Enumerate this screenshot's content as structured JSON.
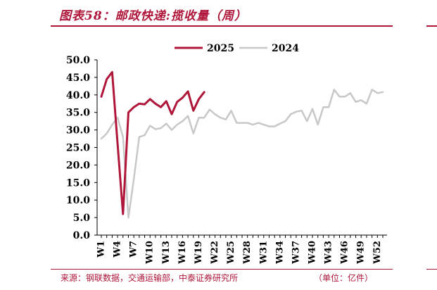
{
  "header": {
    "figure_label": "图表58：",
    "title": "邮政快递:揽收量（周）"
  },
  "footer": {
    "source": "来源：钢联数据，交通运输部，中泰证券研究所",
    "unit": "（单位：亿件）"
  },
  "chart_data": {
    "type": "line",
    "title": "",
    "xlabel": "",
    "ylabel": "",
    "ylim": [
      0,
      50
    ],
    "yticks": [
      "0.0",
      "5.0",
      "10.0",
      "15.0",
      "20.0",
      "25.0",
      "30.0",
      "35.0",
      "40.0",
      "45.0",
      "50.0"
    ],
    "xticks": [
      "W1",
      "W4",
      "W7",
      "W10",
      "W13",
      "W16",
      "W19",
      "W22",
      "W25",
      "W28",
      "W31",
      "W34",
      "W37",
      "W40",
      "W43",
      "W46",
      "W49",
      "W52"
    ],
    "grid": false,
    "legend": "top-center",
    "series": [
      {
        "name": "2025",
        "color": "#b0163a",
        "values": [
          39.5,
          44.5,
          46.5,
          26.0,
          6.0,
          35.0,
          36.5,
          37.5,
          37.3,
          38.8,
          37.5,
          36.5,
          38.2,
          34.5,
          38.0,
          39.2,
          41.0,
          35.5,
          38.8,
          40.8
        ]
      },
      {
        "name": "2024",
        "color": "#c8c8c8",
        "values": [
          27.5,
          29.0,
          31.5,
          33.5,
          28.0,
          5.0,
          16.0,
          28.0,
          28.5,
          31.2,
          30.2,
          30.5,
          31.8,
          30.0,
          31.5,
          32.5,
          34.0,
          29.0,
          33.5,
          33.5,
          35.8,
          34.5,
          33.5,
          33.0,
          35.5,
          32.0,
          32.0,
          32.0,
          31.5,
          32.0,
          31.5,
          31.0,
          31.0,
          31.8,
          32.5,
          34.5,
          35.2,
          35.5,
          32.5,
          36.0,
          31.5,
          36.5,
          36.5,
          41.5,
          39.5,
          39.5,
          40.5,
          38.0,
          38.5,
          37.5,
          41.5,
          40.5,
          40.8
        ]
      }
    ]
  }
}
